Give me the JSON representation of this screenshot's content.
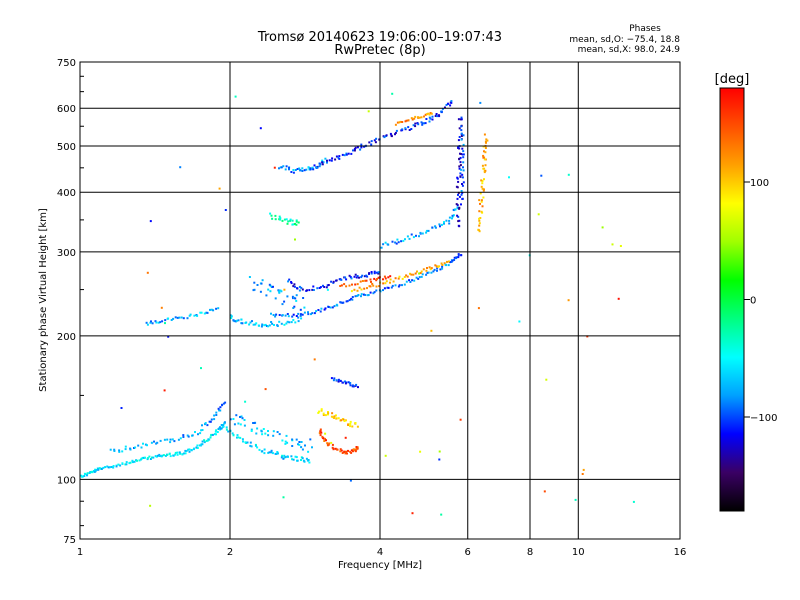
{
  "chart_data": {
    "type": "scatter",
    "title_line1": "Tromsø 20140623 19:06:00–19:07:43",
    "title_line2": "RwPretec (8p)",
    "stats": {
      "heading": "Phases",
      "line1": "mean, sd,O: −75.4, 18.8",
      "line2": "mean, sd,X:  98.0, 24.9"
    },
    "xlabel": "Frequency [MHz]",
    "ylabel": "Stationary phase Virtual Height [km]",
    "x_scale": "log2",
    "y_scale": "log",
    "xlim": [
      1,
      16
    ],
    "ylim": [
      75,
      750
    ],
    "x_ticks": [
      {
        "value": 1,
        "label": "1"
      },
      {
        "value": 2,
        "label": "2"
      },
      {
        "value": 4,
        "label": "4"
      },
      {
        "value": 6,
        "label": "6"
      },
      {
        "value": 8,
        "label": "8"
      },
      {
        "value": 10,
        "label": "10"
      },
      {
        "value": 16,
        "label": "16"
      }
    ],
    "y_ticks": [
      {
        "value": 75,
        "label": "75"
      },
      {
        "value": 100,
        "label": "100"
      },
      {
        "value": 200,
        "label": "200"
      },
      {
        "value": 300,
        "label": "300"
      },
      {
        "value": 400,
        "label": "400"
      },
      {
        "value": 500,
        "label": "500"
      },
      {
        "value": 600,
        "label": "600"
      },
      {
        "value": 750,
        "label": "750"
      }
    ],
    "grid": true,
    "colorbar": {
      "title": "[deg]",
      "range": [
        -180,
        180
      ],
      "ticks": [
        {
          "value": 100,
          "label": "100"
        },
        {
          "value": 0,
          "label": "0"
        },
        {
          "value": -100,
          "label": "−100"
        }
      ],
      "colors": [
        "#000000",
        "#3a0064",
        "#0000ff",
        "#00a0ff",
        "#00ffff",
        "#00ff80",
        "#00ff00",
        "#a0ff00",
        "#ffff00",
        "#ffa000",
        "#ff5000",
        "#ff0000"
      ]
    },
    "traces": [
      {
        "x": [
          1.0,
          1.05,
          1.1,
          1.2,
          1.3,
          1.4,
          1.5,
          1.6,
          1.7,
          1.8,
          1.9,
          1.95
        ],
        "y": [
          102,
          104,
          106,
          108,
          110,
          112,
          113,
          114,
          117,
          122,
          128,
          132
        ],
        "phase": -60,
        "jitter": 2
      },
      {
        "x": [
          1.95,
          2.1,
          2.3,
          2.5,
          2.7,
          2.9
        ],
        "y": [
          128,
          122,
          116,
          113,
          111,
          110
        ],
        "phase": -60,
        "jitter": 3
      },
      {
        "x": [
          1.15,
          1.3,
          1.5,
          1.7,
          1.85,
          1.95
        ],
        "y": [
          115,
          118,
          121,
          125,
          135,
          148
        ],
        "phase": -80,
        "jitter": 3
      },
      {
        "x": [
          2.0,
          2.2,
          2.4,
          2.7,
          2.9
        ],
        "y": [
          135,
          130,
          125,
          120,
          118
        ],
        "phase": -70,
        "jitter": 8
      },
      {
        "x": [
          3.0,
          3.1,
          3.3,
          3.5,
          3.6
        ],
        "y": [
          128,
          120,
          115,
          115,
          117
        ],
        "phase": 150,
        "jitter": 3
      },
      {
        "x": [
          3.0,
          3.2,
          3.4,
          3.6
        ],
        "y": [
          140,
          137,
          133,
          130
        ],
        "phase": 100,
        "jitter": 4
      },
      {
        "x": [
          3.2,
          3.4,
          3.6
        ],
        "y": [
          163,
          160,
          157
        ],
        "phase": -110,
        "jitter": 2
      },
      {
        "x": [
          1.35,
          1.5,
          1.7,
          1.9
        ],
        "y": [
          213,
          217,
          222,
          230
        ],
        "phase": -75,
        "jitter": 2
      },
      {
        "x": [
          2.0,
          2.1,
          2.3,
          2.5,
          2.8
        ],
        "y": [
          220,
          215,
          212,
          213,
          218
        ],
        "phase": -70,
        "jitter": 3
      },
      {
        "x": [
          2.2,
          2.4,
          2.6,
          2.8
        ],
        "y": [
          260,
          250,
          240,
          232
        ],
        "phase": -80,
        "jitter": 10
      },
      {
        "x": [
          2.4,
          2.7,
          3.0,
          3.3,
          3.6,
          4.0,
          4.5,
          5.0,
          5.5,
          5.8
        ],
        "y": [
          222,
          222,
          226,
          235,
          243,
          250,
          260,
          272,
          285,
          300
        ],
        "phase": -90,
        "jitter": 2
      },
      {
        "x": [
          2.6,
          2.8,
          3.1,
          3.4,
          3.7,
          4.0
        ],
        "y": [
          262,
          250,
          256,
          265,
          270,
          272
        ],
        "phase": -110,
        "jitter": 3
      },
      {
        "x": [
          3.5,
          4.0,
          4.5,
          5.0,
          5.5
        ],
        "y": [
          250,
          258,
          268,
          278,
          288
        ],
        "phase": 110,
        "jitter": 2
      },
      {
        "x": [
          3.3,
          3.8,
          4.2
        ],
        "y": [
          255,
          262,
          268
        ],
        "phase": 150,
        "jitter": 2
      },
      {
        "x": [
          4.0,
          4.5,
          5.0,
          5.5,
          5.7
        ],
        "y": [
          310,
          322,
          335,
          350,
          380
        ],
        "phase": -80,
        "jitter": 3
      },
      {
        "x": [
          5.7,
          5.72,
          5.74,
          5.76,
          5.78
        ],
        "y": [
          340,
          400,
          460,
          520,
          590
        ],
        "phase": -120,
        "jitter": 4
      },
      {
        "x": [
          5.82,
          5.83,
          5.84
        ],
        "y": [
          380,
          450,
          540
        ],
        "phase": -100,
        "jitter": 3
      },
      {
        "x": [
          6.3,
          6.35,
          6.4,
          6.45,
          6.5
        ],
        "y": [
          330,
          380,
          430,
          480,
          530
        ],
        "phase": 110,
        "jitter": 4
      },
      {
        "x": [
          2.5,
          2.7,
          2.9,
          3.1
        ],
        "y": [
          455,
          445,
          450,
          470
        ],
        "phase": -80,
        "jitter": 3
      },
      {
        "x": [
          2.9,
          3.2,
          3.5,
          3.8,
          4.2,
          4.6,
          5.0,
          5.3,
          5.6
        ],
        "y": [
          450,
          470,
          490,
          510,
          530,
          550,
          570,
          590,
          630
        ],
        "phase": -110,
        "jitter": 3
      },
      {
        "x": [
          2.4,
          2.6,
          2.75
        ],
        "y": [
          360,
          350,
          345
        ],
        "phase": -30,
        "jitter": 4
      },
      {
        "x": [
          4.3,
          4.7,
          5.1
        ],
        "y": [
          560,
          575,
          590
        ],
        "phase": 120,
        "jitter": 2
      }
    ],
    "noise": {
      "count": 60,
      "phase_mix": [
        -100,
        120,
        60,
        160,
        -40
      ]
    }
  }
}
